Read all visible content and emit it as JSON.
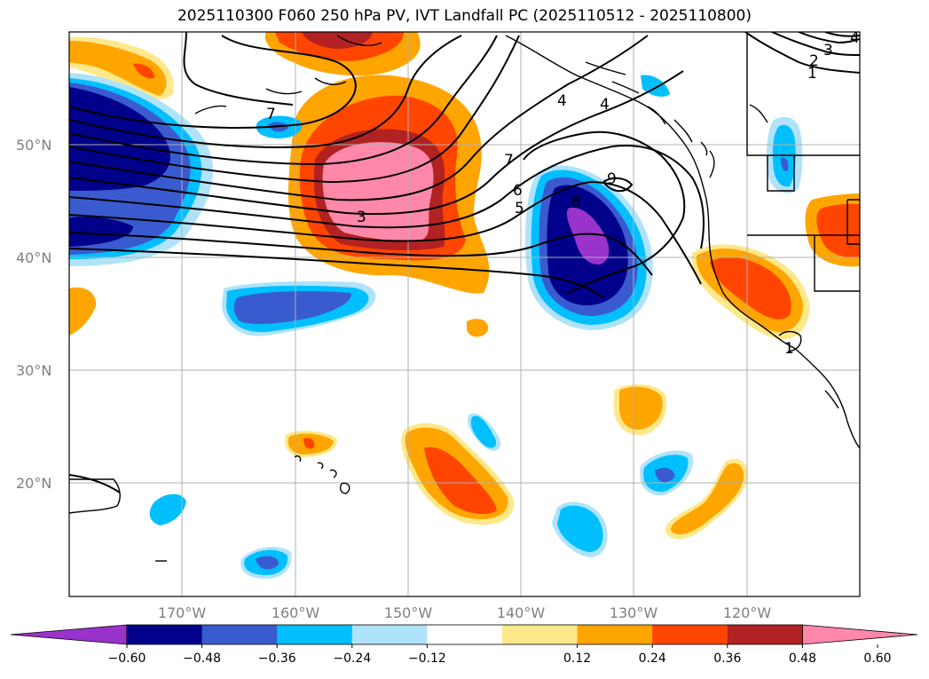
{
  "title": "2025110300 F060 250 hPa PV, IVT Landfall PC (2025110512 - 2025110800)",
  "lat_labels": [
    "50°N",
    "40°N",
    "30°N",
    "20°N"
  ],
  "lon_labels": [
    "170°W",
    "160°W",
    "150°W",
    "140°W",
    "130°W",
    "120°W"
  ],
  "colorbar": {
    "ticks": [
      "−0.60",
      "−0.48",
      "−0.36",
      "−0.24",
      "−0.12",
      "0.12",
      "0.24",
      "0.36",
      "0.48",
      "0.60"
    ],
    "colors": [
      "#9933cc",
      "#00008b",
      "#3a5bcf",
      "#00bfff",
      "#aee3fa",
      "#ffffff",
      "#fde88a",
      "#ffa500",
      "#ff4500",
      "#b22222",
      "#ff88aa"
    ]
  },
  "contour_labels": [
    "7",
    "3",
    "7",
    "6",
    "5",
    "4",
    "4",
    "9",
    "8",
    "4",
    "3",
    "2",
    "1",
    "1"
  ]
}
